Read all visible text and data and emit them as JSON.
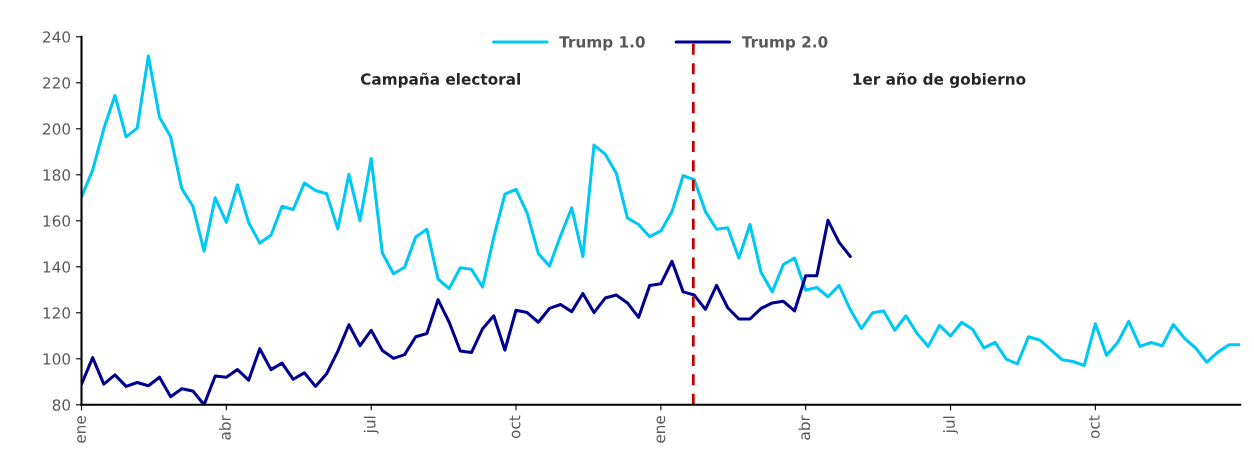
{
  "chart_data": {
    "type": "line",
    "annotations": [
      "Campaña electoral",
      "1er año de gobierno"
    ],
    "categories": [
      "ene",
      null,
      null,
      null,
      null,
      null,
      null,
      null,
      null,
      null,
      null,
      null,
      null,
      "abr",
      null,
      null,
      null,
      null,
      null,
      null,
      null,
      null,
      null,
      null,
      null,
      null,
      "jul",
      null,
      null,
      null,
      null,
      null,
      null,
      null,
      null,
      null,
      null,
      null,
      null,
      "oct",
      null,
      null,
      null,
      null,
      null,
      null,
      null,
      null,
      null,
      null,
      null,
      null,
      "ene",
      null,
      null,
      null,
      null,
      null,
      null,
      null,
      null,
      null,
      null,
      null,
      null,
      "abr",
      null,
      null,
      null,
      null,
      null,
      null,
      null,
      null,
      null,
      null,
      null,
      null,
      "jul",
      null,
      null,
      null,
      null,
      null,
      null,
      null,
      null,
      null,
      null,
      null,
      null,
      "oct",
      null,
      null,
      null,
      null,
      null,
      null,
      null,
      null,
      null,
      null,
      null,
      null,
      null
    ],
    "series": [
      {
        "name": "Trump 1.0",
        "color": "#00c8f5",
        "values": [
          170.4,
          182,
          200,
          214.5,
          196.5,
          200.3,
          231.7,
          205,
          196.5,
          174,
          166.3,
          146.8,
          170,
          159.3,
          175.6,
          159.3,
          150.3,
          153.7,
          166.3,
          164.9,
          176.4,
          173.2,
          171.8,
          156.5,
          180.2,
          160,
          187.1,
          146,
          137,
          139.8,
          153,
          156.3,
          134.7,
          130.5,
          139.6,
          138.9,
          131.2,
          152.8,
          171.6,
          173.7,
          163.3,
          145.8,
          140.3,
          153.5,
          165.6,
          144.5,
          192.9,
          189,
          180.7,
          161.2,
          158.4,
          153.1,
          155.6,
          164,
          179.6,
          177.9,
          164,
          156.3,
          157,
          143.8,
          158.4,
          137.5,
          129.1,
          141,
          143.8,
          129.8,
          131,
          127,
          131.9,
          121.4,
          113.1,
          120,
          120.8,
          112.4,
          118.7,
          111,
          105.4,
          114.5,
          109.9,
          115.9,
          112.7,
          104.7,
          107.1,
          99.9,
          97.8,
          109.6,
          108.2,
          104,
          99.6,
          98.8,
          97.1,
          115.2,
          101.5,
          107.1,
          116.3,
          105.4,
          107.1,
          105.7,
          114.9,
          108.9,
          104.7,
          98.5,
          102.9,
          106.1,
          106.1
        ]
      },
      {
        "name": "Trump 2.0",
        "color": "#000090",
        "values": [
          89,
          100.5,
          89,
          93,
          88,
          89.7,
          88.3,
          92,
          83.5,
          87,
          86,
          80,
          92.5,
          92,
          95.3,
          90.7,
          104.4,
          95.3,
          98.1,
          91.1,
          93.9,
          88,
          93.5,
          103.2,
          114.8,
          105.7,
          112.4,
          103.6,
          100.2,
          101.8,
          109.6,
          111,
          125.7,
          115.9,
          103.4,
          102.7,
          113.1,
          118.7,
          103.8,
          121.1,
          120.1,
          115.9,
          121.9,
          123.6,
          120.5,
          128.4,
          120.1,
          126.4,
          127.7,
          124.3,
          118,
          131.9,
          132.6,
          142.4,
          129.1,
          127.7,
          121.5,
          131.9,
          122.2,
          117.3,
          117.3,
          121.9,
          124.3,
          125,
          120.8,
          136.1,
          136.1,
          160.2,
          150.6,
          144.5,
          null,
          null,
          null,
          null,
          null,
          null,
          null,
          null,
          null,
          null,
          null,
          null,
          null,
          null,
          null,
          null,
          null,
          null,
          null,
          null,
          null,
          null,
          null,
          null,
          null,
          null,
          null,
          null,
          null,
          null,
          null,
          null,
          null,
          null,
          null
        ]
      }
    ],
    "ylim": [
      80,
      240
    ],
    "yticks": [
      80,
      100,
      120,
      140,
      160,
      180,
      200,
      220,
      240
    ],
    "legend": "top",
    "line_style": "solid"
  }
}
